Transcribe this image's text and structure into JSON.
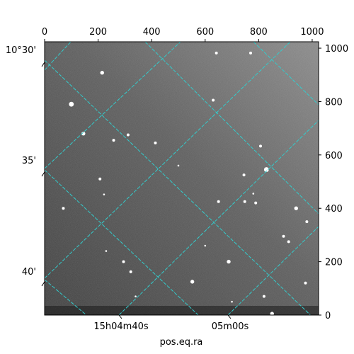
{
  "chart_data": {
    "type": "image",
    "title": "",
    "xlabel": "pos.eq.ra",
    "ylabel": "",
    "pixel_axes": {
      "x_ticks": [
        "0",
        "200",
        "400",
        "600",
        "800",
        "1000"
      ],
      "x_tick_values": [
        0,
        200,
        400,
        600,
        800,
        1000
      ],
      "y_ticks": [
        "0",
        "200",
        "400",
        "600",
        "800",
        "1000"
      ],
      "y_tick_values": [
        0,
        200,
        400,
        600,
        800,
        1000
      ],
      "xlim": [
        0,
        1024
      ],
      "ylim": [
        0,
        1024
      ]
    },
    "world_axes": {
      "ra_ticks": [
        "15h04m40s",
        "05m00s"
      ],
      "ra_tick_x": [
        285,
        700
      ],
      "dec_ticks": [
        "10°30'",
        "35'",
        "40'"
      ],
      "dec_tick_y": [
        1005,
        590,
        165
      ]
    },
    "grid": true,
    "grid_color": "#33cccc",
    "image_colormap": "gray",
    "stars": [
      {
        "x": 100,
        "y": 790,
        "size": 4
      },
      {
        "x": 222,
        "y": 452,
        "size": 1
      },
      {
        "x": 145,
        "y": 680,
        "size": 3
      },
      {
        "x": 215,
        "y": 908,
        "size": 3
      },
      {
        "x": 258,
        "y": 655,
        "size": 2
      },
      {
        "x": 312,
        "y": 675,
        "size": 2
      },
      {
        "x": 414,
        "y": 645,
        "size": 2
      },
      {
        "x": 630,
        "y": 805,
        "size": 2
      },
      {
        "x": 642,
        "y": 982,
        "size": 2
      },
      {
        "x": 770,
        "y": 982,
        "size": 2
      },
      {
        "x": 829,
        "y": 545,
        "size": 4
      },
      {
        "x": 807,
        "y": 633,
        "size": 2
      },
      {
        "x": 745,
        "y": 525,
        "size": 2
      },
      {
        "x": 789,
        "y": 420,
        "size": 2
      },
      {
        "x": 650,
        "y": 425,
        "size": 2
      },
      {
        "x": 748,
        "y": 425,
        "size": 2
      },
      {
        "x": 780,
        "y": 455,
        "size": 1
      },
      {
        "x": 940,
        "y": 400,
        "size": 3
      },
      {
        "x": 980,
        "y": 350,
        "size": 2
      },
      {
        "x": 893,
        "y": 295,
        "size": 2
      },
      {
        "x": 912,
        "y": 275,
        "size": 2
      },
      {
        "x": 688,
        "y": 200,
        "size": 3
      },
      {
        "x": 552,
        "y": 125,
        "size": 3
      },
      {
        "x": 820,
        "y": 70,
        "size": 2
      },
      {
        "x": 850,
        "y": 5,
        "size": 3
      },
      {
        "x": 975,
        "y": 120,
        "size": 2
      },
      {
        "x": 70,
        "y": 400,
        "size": 2
      },
      {
        "x": 207,
        "y": 510,
        "size": 2
      },
      {
        "x": 295,
        "y": 200,
        "size": 2
      },
      {
        "x": 322,
        "y": 162,
        "size": 2
      },
      {
        "x": 230,
        "y": 240,
        "size": 1
      },
      {
        "x": 340,
        "y": 70,
        "size": 1
      },
      {
        "x": 600,
        "y": 260,
        "size": 1
      },
      {
        "x": 700,
        "y": 50,
        "size": 1
      },
      {
        "x": 500,
        "y": 560,
        "size": 1
      }
    ]
  }
}
